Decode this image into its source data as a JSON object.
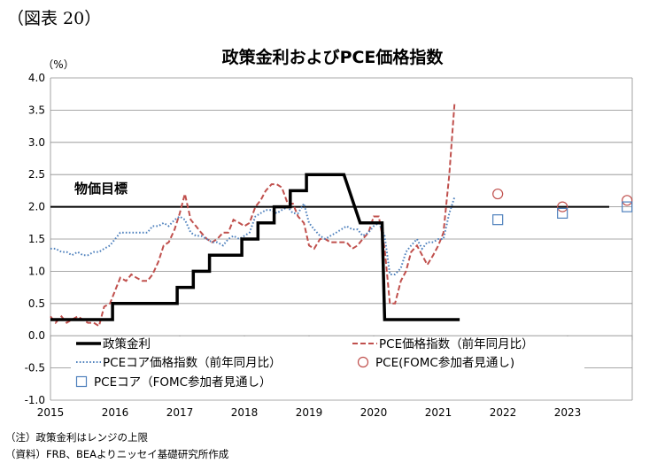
{
  "figure_number": "（図表 20）",
  "notes": [
    "（注）政策金利はレンジの上限",
    "（資料）FRB、BEAよりニッセイ基礎研究所作成"
  ],
  "chart_data": {
    "type": "line",
    "title": "政策金利およびPCE価格指数",
    "yunit": "（%）",
    "ylim": [
      -1.0,
      4.0
    ],
    "yticks": [
      "4.0",
      "3.5",
      "3.0",
      "2.5",
      "2.0",
      "1.5",
      "1.0",
      "0.5",
      "0.0",
      "-0.5",
      "-1.0"
    ],
    "yticks_values": [
      4.0,
      3.5,
      3.0,
      2.5,
      2.0,
      1.5,
      1.0,
      0.5,
      0.0,
      -0.5,
      -1.0
    ],
    "xlim": [
      2015.0,
      2024.0
    ],
    "xticks": [
      "2015",
      "2016",
      "2017",
      "2018",
      "2019",
      "2020",
      "2021",
      "2022",
      "2023"
    ],
    "xticks_values": [
      2015,
      2016,
      2017,
      2018,
      2019,
      2020,
      2021,
      2022,
      2023
    ],
    "grid": "horizontal",
    "annotation": {
      "label": "物価目標",
      "value": 2.0
    },
    "legend": [
      "政策金利",
      "PCE価格指数（前年同月比）",
      "PCEコア価格指数（前年同月比）",
      "PCE(FOMC参加者見通し)",
      "PCEコア（FOMC参加者見通し）"
    ],
    "series": [
      {
        "name": "政策金利",
        "style": "solid",
        "color": "#000000",
        "points": [
          [
            2015.0,
            0.25
          ],
          [
            2015.96,
            0.25
          ],
          [
            2015.96,
            0.5
          ],
          [
            2016.96,
            0.5
          ],
          [
            2016.96,
            0.75
          ],
          [
            2017.21,
            0.75
          ],
          [
            2017.21,
            1.0
          ],
          [
            2017.46,
            1.0
          ],
          [
            2017.46,
            1.25
          ],
          [
            2017.96,
            1.25
          ],
          [
            2017.96,
            1.5
          ],
          [
            2018.21,
            1.5
          ],
          [
            2018.21,
            1.75
          ],
          [
            2018.46,
            1.75
          ],
          [
            2018.46,
            2.0
          ],
          [
            2018.71,
            2.0
          ],
          [
            2018.71,
            2.25
          ],
          [
            2018.96,
            2.25
          ],
          [
            2018.96,
            2.5
          ],
          [
            2019.54,
            2.5
          ],
          [
            2019.79,
            1.75
          ],
          [
            2020.13,
            1.75
          ],
          [
            2020.17,
            0.25
          ],
          [
            2021.33,
            0.25
          ]
        ]
      },
      {
        "name": "PCE価格指数（前年同月比）",
        "style": "dashed",
        "color": "#c0504d",
        "points": [
          [
            2015.0,
            0.3
          ],
          [
            2015.08,
            0.2
          ],
          [
            2015.17,
            0.3
          ],
          [
            2015.25,
            0.2
          ],
          [
            2015.33,
            0.25
          ],
          [
            2015.42,
            0.3
          ],
          [
            2015.5,
            0.25
          ],
          [
            2015.58,
            0.2
          ],
          [
            2015.67,
            0.2
          ],
          [
            2015.75,
            0.15
          ],
          [
            2015.83,
            0.45
          ],
          [
            2015.92,
            0.5
          ],
          [
            2016.0,
            0.7
          ],
          [
            2016.08,
            0.9
          ],
          [
            2016.17,
            0.85
          ],
          [
            2016.25,
            0.95
          ],
          [
            2016.33,
            0.9
          ],
          [
            2016.42,
            0.85
          ],
          [
            2016.5,
            0.85
          ],
          [
            2016.58,
            0.95
          ],
          [
            2016.67,
            1.15
          ],
          [
            2016.75,
            1.4
          ],
          [
            2016.83,
            1.45
          ],
          [
            2016.92,
            1.65
          ],
          [
            2017.0,
            1.9
          ],
          [
            2017.08,
            2.2
          ],
          [
            2017.17,
            1.8
          ],
          [
            2017.25,
            1.7
          ],
          [
            2017.33,
            1.6
          ],
          [
            2017.42,
            1.5
          ],
          [
            2017.5,
            1.45
          ],
          [
            2017.58,
            1.5
          ],
          [
            2017.67,
            1.6
          ],
          [
            2017.75,
            1.6
          ],
          [
            2017.83,
            1.8
          ],
          [
            2017.92,
            1.75
          ],
          [
            2018.0,
            1.7
          ],
          [
            2018.08,
            1.75
          ],
          [
            2018.17,
            2.0
          ],
          [
            2018.25,
            2.1
          ],
          [
            2018.33,
            2.25
          ],
          [
            2018.42,
            2.35
          ],
          [
            2018.5,
            2.35
          ],
          [
            2018.58,
            2.3
          ],
          [
            2018.67,
            2.05
          ],
          [
            2018.75,
            2.05
          ],
          [
            2018.83,
            1.85
          ],
          [
            2018.92,
            1.75
          ],
          [
            2019.0,
            1.4
          ],
          [
            2019.08,
            1.35
          ],
          [
            2019.17,
            1.5
          ],
          [
            2019.25,
            1.5
          ],
          [
            2019.33,
            1.45
          ],
          [
            2019.42,
            1.45
          ],
          [
            2019.5,
            1.45
          ],
          [
            2019.58,
            1.45
          ],
          [
            2019.67,
            1.35
          ],
          [
            2019.75,
            1.4
          ],
          [
            2019.83,
            1.5
          ],
          [
            2019.92,
            1.6
          ],
          [
            2020.0,
            1.85
          ],
          [
            2020.08,
            1.85
          ],
          [
            2020.17,
            1.35
          ],
          [
            2020.25,
            0.5
          ],
          [
            2020.33,
            0.5
          ],
          [
            2020.42,
            0.85
          ],
          [
            2020.5,
            1.0
          ],
          [
            2020.58,
            1.3
          ],
          [
            2020.67,
            1.4
          ],
          [
            2020.75,
            1.25
          ],
          [
            2020.83,
            1.1
          ],
          [
            2020.92,
            1.25
          ],
          [
            2021.0,
            1.4
          ],
          [
            2021.08,
            1.6
          ],
          [
            2021.17,
            2.5
          ],
          [
            2021.25,
            3.6
          ]
        ]
      },
      {
        "name": "PCEコア価格指数（前年同月比）",
        "style": "dotted",
        "color": "#4f81bd",
        "points": [
          [
            2015.0,
            1.35
          ],
          [
            2015.08,
            1.35
          ],
          [
            2015.17,
            1.3
          ],
          [
            2015.25,
            1.3
          ],
          [
            2015.33,
            1.25
          ],
          [
            2015.42,
            1.3
          ],
          [
            2015.5,
            1.25
          ],
          [
            2015.58,
            1.25
          ],
          [
            2015.67,
            1.3
          ],
          [
            2015.75,
            1.3
          ],
          [
            2015.83,
            1.35
          ],
          [
            2015.92,
            1.4
          ],
          [
            2016.0,
            1.5
          ],
          [
            2016.08,
            1.6
          ],
          [
            2016.17,
            1.6
          ],
          [
            2016.25,
            1.6
          ],
          [
            2016.33,
            1.6
          ],
          [
            2016.42,
            1.6
          ],
          [
            2016.5,
            1.6
          ],
          [
            2016.58,
            1.7
          ],
          [
            2016.67,
            1.7
          ],
          [
            2016.75,
            1.75
          ],
          [
            2016.83,
            1.7
          ],
          [
            2016.92,
            1.8
          ],
          [
            2017.0,
            1.85
          ],
          [
            2017.08,
            1.8
          ],
          [
            2017.17,
            1.6
          ],
          [
            2017.25,
            1.55
          ],
          [
            2017.33,
            1.55
          ],
          [
            2017.42,
            1.5
          ],
          [
            2017.5,
            1.45
          ],
          [
            2017.58,
            1.45
          ],
          [
            2017.67,
            1.4
          ],
          [
            2017.75,
            1.5
          ],
          [
            2017.83,
            1.55
          ],
          [
            2017.92,
            1.5
          ],
          [
            2018.0,
            1.55
          ],
          [
            2018.08,
            1.6
          ],
          [
            2018.17,
            1.85
          ],
          [
            2018.25,
            1.9
          ],
          [
            2018.33,
            1.95
          ],
          [
            2018.42,
            1.95
          ],
          [
            2018.5,
            1.9
          ],
          [
            2018.58,
            1.95
          ],
          [
            2018.67,
            2.0
          ],
          [
            2018.75,
            1.9
          ],
          [
            2018.83,
            1.9
          ],
          [
            2018.92,
            2.05
          ],
          [
            2019.0,
            1.75
          ],
          [
            2019.08,
            1.65
          ],
          [
            2019.17,
            1.55
          ],
          [
            2019.25,
            1.5
          ],
          [
            2019.33,
            1.55
          ],
          [
            2019.42,
            1.6
          ],
          [
            2019.5,
            1.65
          ],
          [
            2019.58,
            1.7
          ],
          [
            2019.67,
            1.65
          ],
          [
            2019.75,
            1.65
          ],
          [
            2019.83,
            1.55
          ],
          [
            2019.92,
            1.6
          ],
          [
            2020.0,
            1.7
          ],
          [
            2020.08,
            1.75
          ],
          [
            2020.17,
            1.55
          ],
          [
            2020.25,
            0.95
          ],
          [
            2020.33,
            0.95
          ],
          [
            2020.42,
            1.05
          ],
          [
            2020.5,
            1.3
          ],
          [
            2020.58,
            1.4
          ],
          [
            2020.67,
            1.5
          ],
          [
            2020.75,
            1.35
          ],
          [
            2020.83,
            1.45
          ],
          [
            2020.92,
            1.45
          ],
          [
            2021.0,
            1.5
          ],
          [
            2021.08,
            1.5
          ],
          [
            2021.17,
            1.9
          ],
          [
            2021.25,
            2.15
          ]
        ]
      }
    ],
    "projections": [
      {
        "name": "PCE(FOMC参加者見通し)",
        "marker": "circle",
        "color": "#c0504d",
        "points": [
          [
            2021.92,
            2.2
          ],
          [
            2022.92,
            2.0
          ],
          [
            2023.92,
            2.1
          ]
        ]
      },
      {
        "name": "PCEコア（FOMC参加者見通し）",
        "marker": "square",
        "color": "#4f81bd",
        "points": [
          [
            2021.92,
            1.8
          ],
          [
            2022.92,
            1.9
          ],
          [
            2023.92,
            2.0
          ]
        ]
      }
    ]
  }
}
